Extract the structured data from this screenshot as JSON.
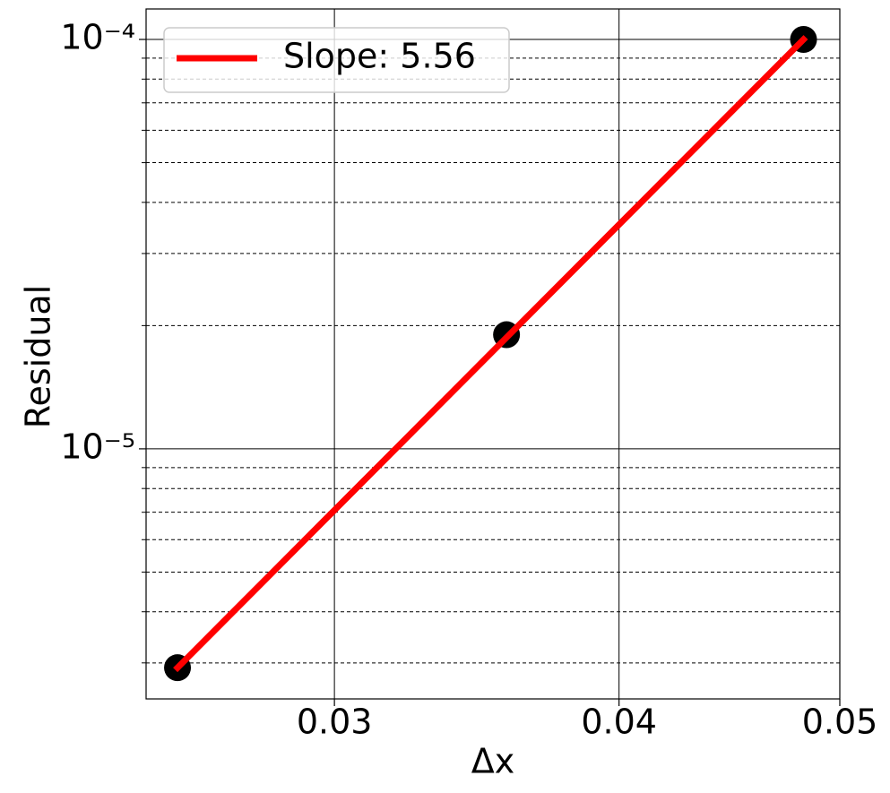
{
  "chart_data": {
    "type": "line",
    "x_label": "Δx",
    "y_label": "Residual",
    "xscale": "log",
    "yscale": "log",
    "xlim": [
      0.0248,
      0.05
    ],
    "ylim": [
      2.45e-06,
      0.0001187
    ],
    "xticks": [
      0.03,
      0.04,
      0.05
    ],
    "yticks": [
      {
        "value": 1e-05,
        "label": "10⁻⁵"
      },
      {
        "value": 0.0001,
        "label": "10⁻⁴"
      }
    ],
    "yminorticks": [
      3e-06,
      4e-06,
      5e-06,
      6e-06,
      7e-06,
      8e-06,
      9e-06,
      2e-05,
      3e-05,
      4e-05,
      5e-05,
      6e-05,
      7e-05,
      8e-05,
      9e-05
    ],
    "grid": true,
    "legend": "upper left",
    "series": [
      {
        "marker": "circle",
        "color": "#000000",
        "x": [
          0.0256,
          0.0357,
          0.0482
        ],
        "values": [
          2.92e-06,
          1.9e-05,
          0.0001
        ]
      },
      {
        "name": "Slope: 5.56",
        "color": "#ff0000",
        "x": [
          0.0256,
          0.0482
        ],
        "values": [
          2.92e-06,
          0.0001
        ]
      }
    ]
  }
}
